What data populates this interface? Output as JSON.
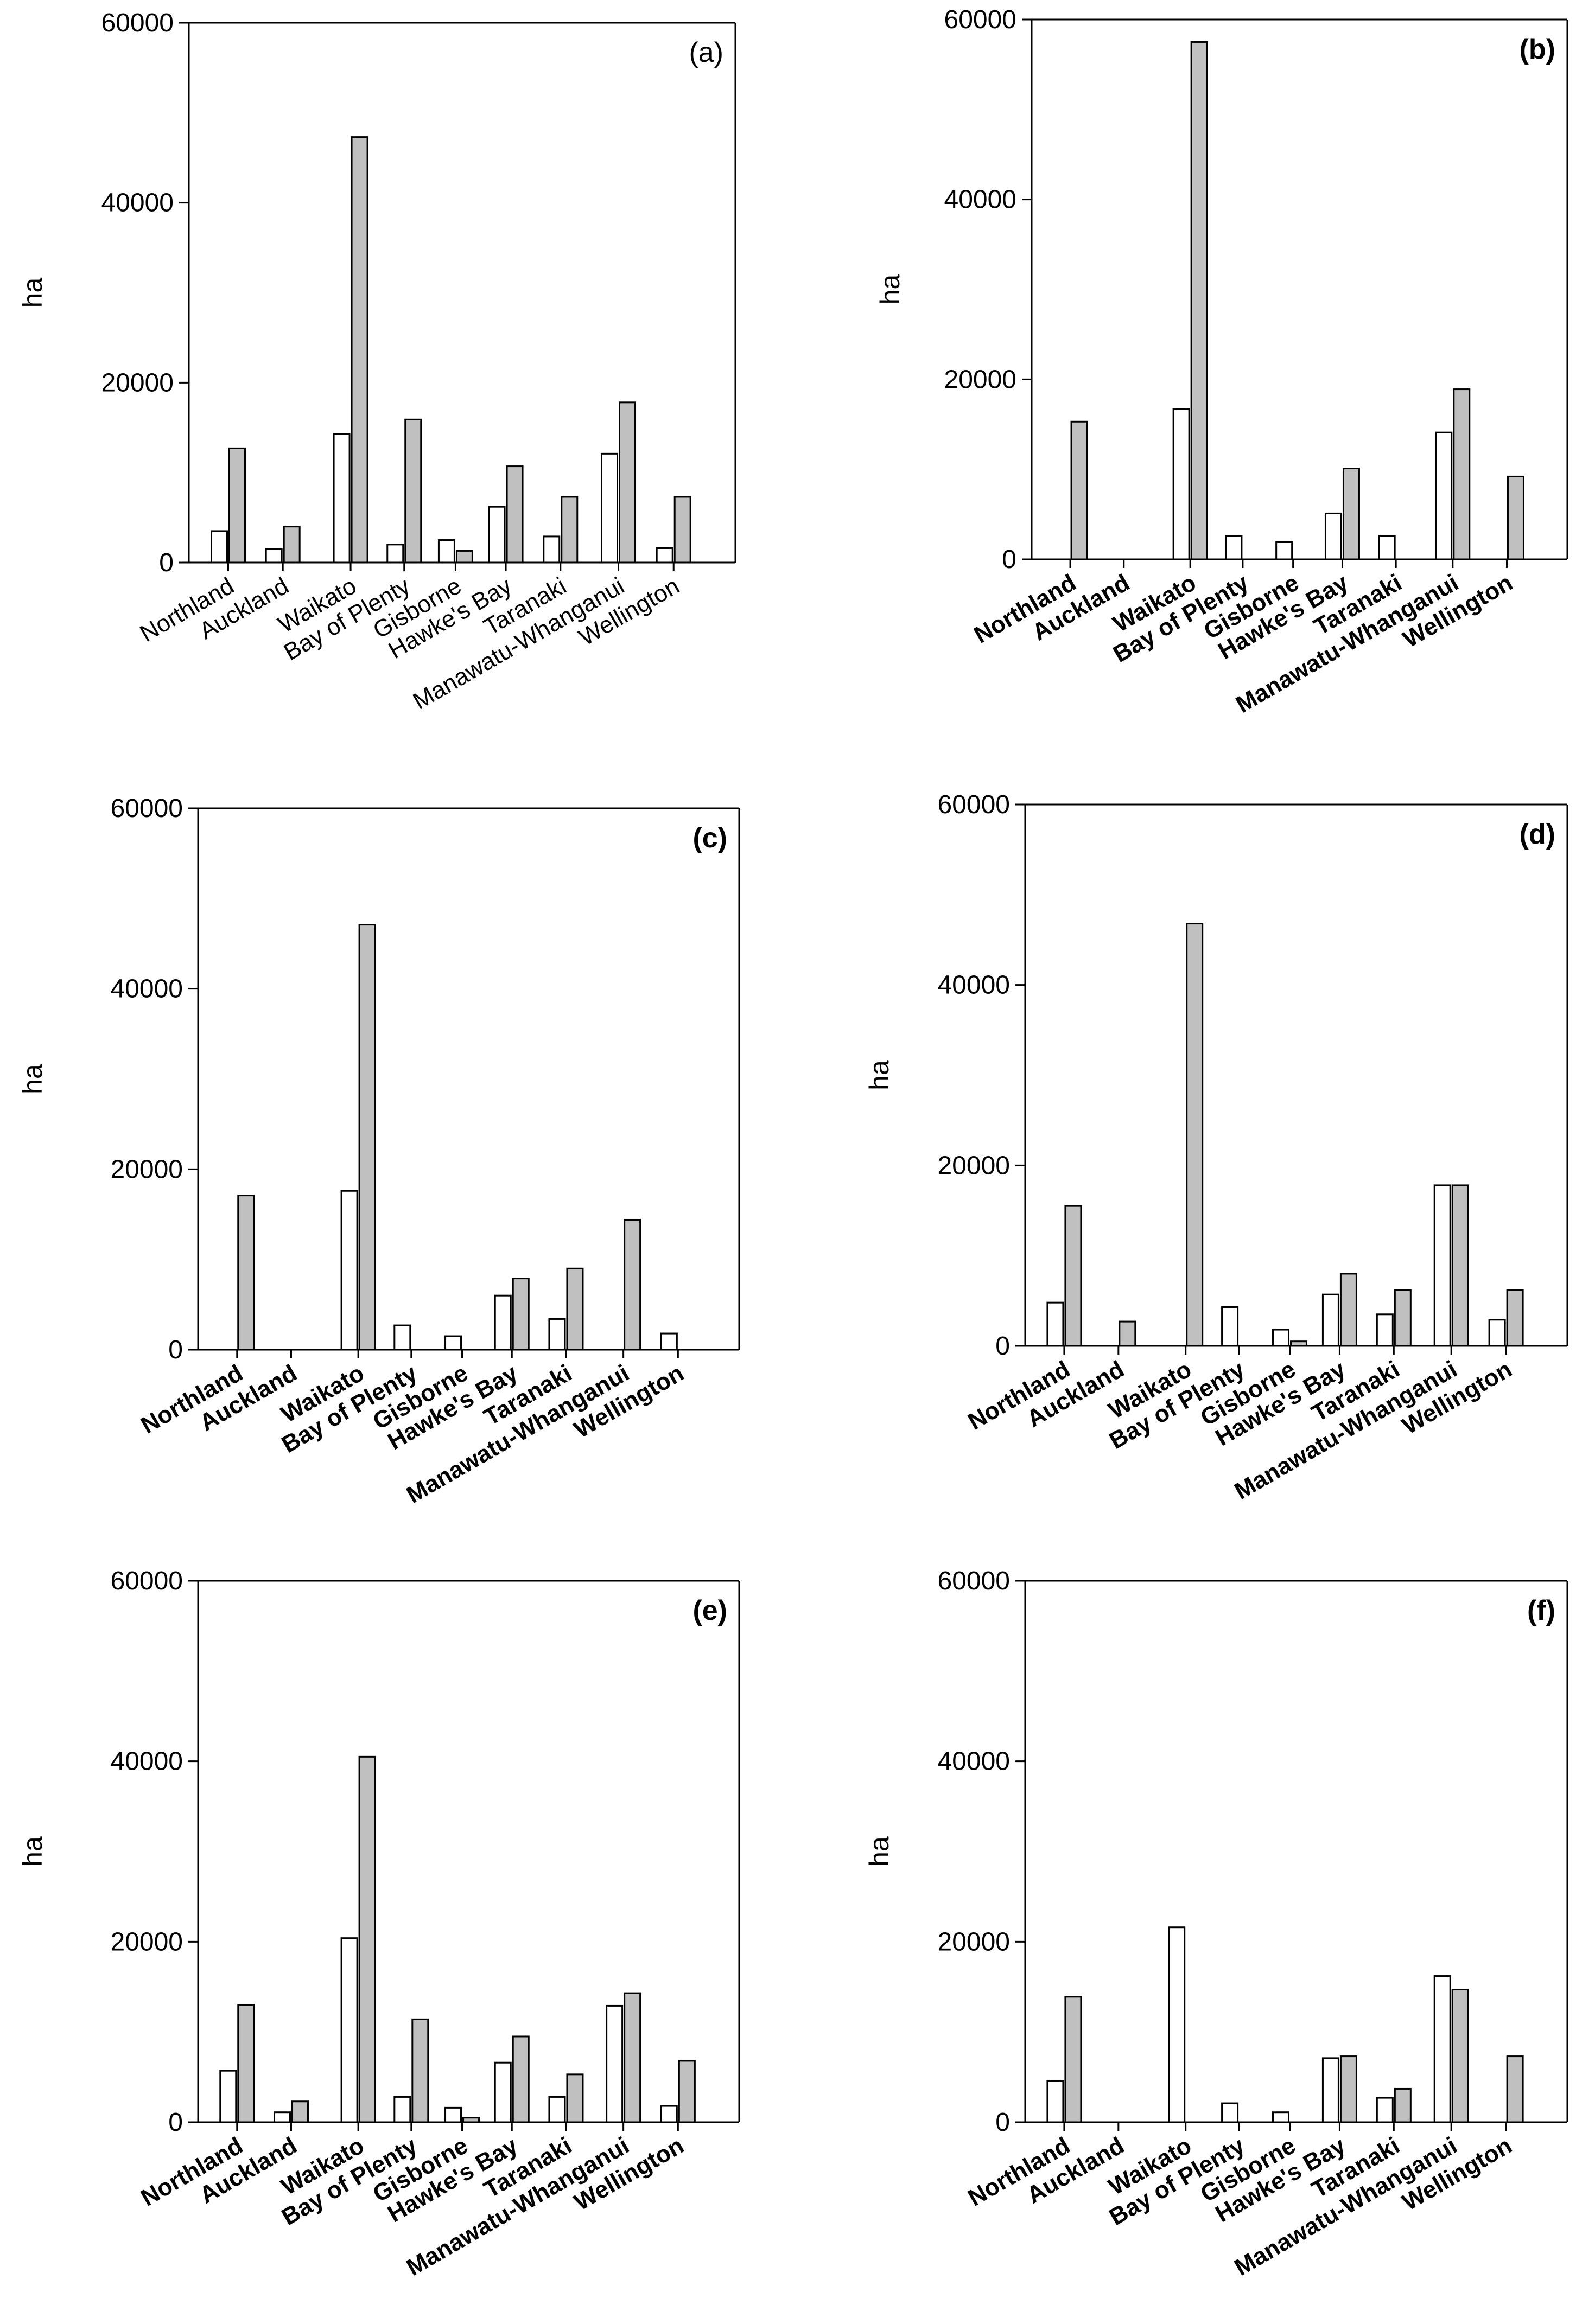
{
  "figure": {
    "background": "#ffffff"
  },
  "colors": {
    "series_1": "#ffffff",
    "series_2": "#c0c0c0",
    "stroke": "#000000"
  },
  "chart_data": [
    {
      "type": "bar",
      "panel_label": "(a)",
      "bold_labels": false,
      "ylabel": "ha",
      "ylim": [
        0,
        60000
      ],
      "yticks": [
        0,
        20000,
        40000,
        60000
      ],
      "categories": [
        "Northland",
        "Auckland",
        "Waikato",
        "Bay of Plenty",
        "Gisborne",
        "Hawke's Bay",
        "Taranaki",
        "Manawatu-Whanganui",
        "Wellington"
      ],
      "series": [
        {
          "name": "white",
          "values": [
            3500,
            1500,
            14300,
            2000,
            2500,
            6200,
            2900,
            12100,
            1600
          ]
        },
        {
          "name": "grey",
          "values": [
            12700,
            4000,
            47300,
            15900,
            1300,
            10700,
            7300,
            17800,
            7300
          ]
        }
      ]
    },
    {
      "type": "bar",
      "panel_label": "(b)",
      "bold_labels": true,
      "ylabel": "ha",
      "ylim": [
        0,
        60000
      ],
      "yticks": [
        0,
        20000,
        40000,
        60000
      ],
      "categories": [
        "Northland",
        "Auckland",
        "Waikato",
        "Bay of Plenty",
        "Gisborne",
        "Hawke's Bay",
        "Taranaki",
        "Manawatu-Whanganui",
        "Wellington"
      ],
      "series": [
        {
          "name": "white",
          "values": [
            0,
            0,
            16700,
            2600,
            1900,
            5100,
            2600,
            14100,
            0
          ]
        },
        {
          "name": "grey",
          "values": [
            15300,
            0,
            57500,
            0,
            0,
            10100,
            0,
            18900,
            9200
          ]
        }
      ]
    },
    {
      "type": "bar",
      "panel_label": "(c)",
      "bold_labels": true,
      "ylabel": "ha",
      "ylim": [
        0,
        60000
      ],
      "yticks": [
        0,
        20000,
        40000,
        60000
      ],
      "categories": [
        "Northland",
        "Auckland",
        "Waikato",
        "Bay of Plenty",
        "Gisborne",
        "Hawke's Bay",
        "Taranaki",
        "Manawatu-Whanganui",
        "Wellington"
      ],
      "series": [
        {
          "name": "white",
          "values": [
            0,
            0,
            17600,
            2700,
            1500,
            6000,
            3400,
            0,
            1800
          ]
        },
        {
          "name": "grey",
          "values": [
            17100,
            0,
            47100,
            0,
            0,
            7900,
            9000,
            14400,
            0
          ]
        }
      ]
    },
    {
      "type": "bar",
      "panel_label": "(d)",
      "bold_labels": true,
      "ylabel": "ha",
      "ylim": [
        0,
        60000
      ],
      "yticks": [
        0,
        20000,
        40000,
        60000
      ],
      "categories": [
        "Northland",
        "Auckland",
        "Waikato",
        "Bay of Plenty",
        "Gisborne",
        "Hawke's Bay",
        "Taranaki",
        "Manawatu-Whanganui",
        "Wellington"
      ],
      "series": [
        {
          "name": "white",
          "values": [
            4800,
            0,
            0,
            4300,
            1800,
            5700,
            3500,
            17800,
            2900
          ]
        },
        {
          "name": "grey",
          "values": [
            15500,
            2700,
            46800,
            0,
            500,
            8000,
            6200,
            17800,
            6200
          ]
        }
      ]
    },
    {
      "type": "bar",
      "panel_label": "(e)",
      "bold_labels": true,
      "ylabel": "ha",
      "ylim": [
        0,
        60000
      ],
      "yticks": [
        0,
        20000,
        40000,
        60000
      ],
      "categories": [
        "Northland",
        "Auckland",
        "Waikato",
        "Bay of Plenty",
        "Gisborne",
        "Hawke's Bay",
        "Taranaki",
        "Manawatu-Whanganui",
        "Wellington"
      ],
      "series": [
        {
          "name": "white",
          "values": [
            5700,
            1100,
            20400,
            2800,
            1600,
            6600,
            2800,
            12900,
            1800
          ]
        },
        {
          "name": "grey",
          "values": [
            13000,
            2300,
            40500,
            11400,
            500,
            9500,
            5300,
            14300,
            6800
          ]
        }
      ]
    },
    {
      "type": "bar",
      "panel_label": "(f)",
      "bold_labels": true,
      "ylabel": "ha",
      "ylim": [
        0,
        60000
      ],
      "yticks": [
        0,
        20000,
        40000,
        60000
      ],
      "categories": [
        "Northland",
        "Auckland",
        "Waikato",
        "Bay of Plenty",
        "Gisborne",
        "Hawke's Bay",
        "Taranaki",
        "Manawatu-Whanganui",
        "Wellington"
      ],
      "series": [
        {
          "name": "white",
          "values": [
            4600,
            0,
            21600,
            2100,
            1100,
            7100,
            2700,
            16200,
            0
          ]
        },
        {
          "name": "grey",
          "values": [
            13900,
            0,
            0,
            0,
            0,
            7300,
            3700,
            14700,
            7300
          ]
        }
      ]
    }
  ]
}
